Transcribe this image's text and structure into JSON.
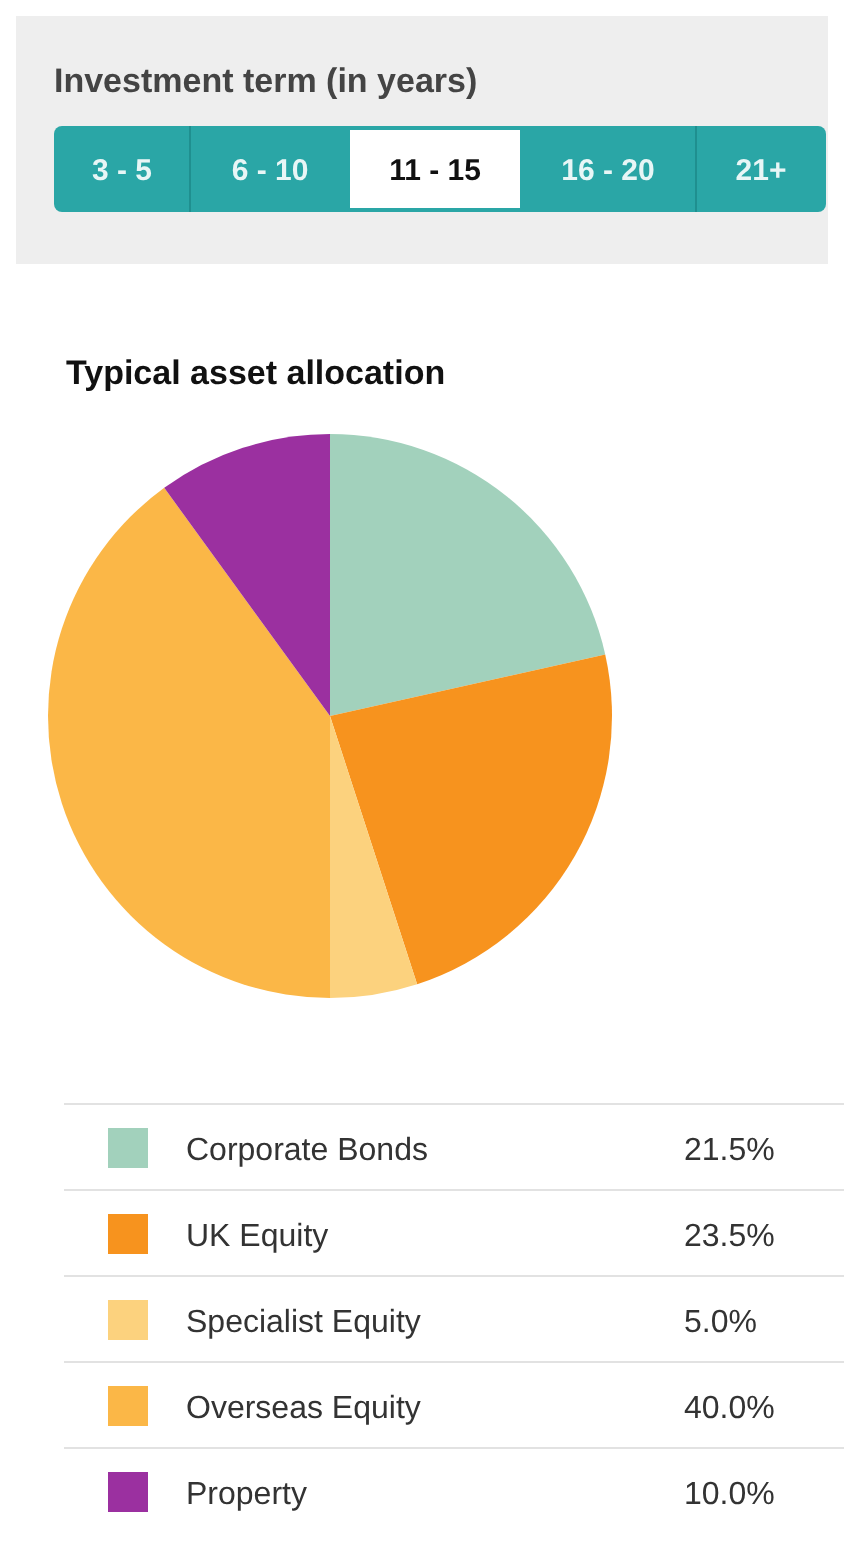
{
  "chart_data": {
    "type": "pie",
    "title": "Typical asset allocation",
    "annotations": [
      "Investment term (in years)",
      "3 - 5",
      "6 - 10",
      "11 - 15",
      "16 - 20",
      "21+"
    ],
    "categories": [
      "Corporate Bonds",
      "UK Equity",
      "Specialist Equity",
      "Overseas Equity",
      "Property"
    ],
    "values": [
      21.5,
      23.5,
      5.0,
      40.0,
      10.0
    ],
    "value_labels": [
      "21.5%",
      "23.5%",
      "5.0%",
      "40.0%",
      "10.0%"
    ],
    "colors": [
      "#a2d1bc",
      "#f7931e",
      "#fcd27e",
      "#fbb747",
      "#9b30a0"
    ],
    "legend": "bottom"
  }
}
